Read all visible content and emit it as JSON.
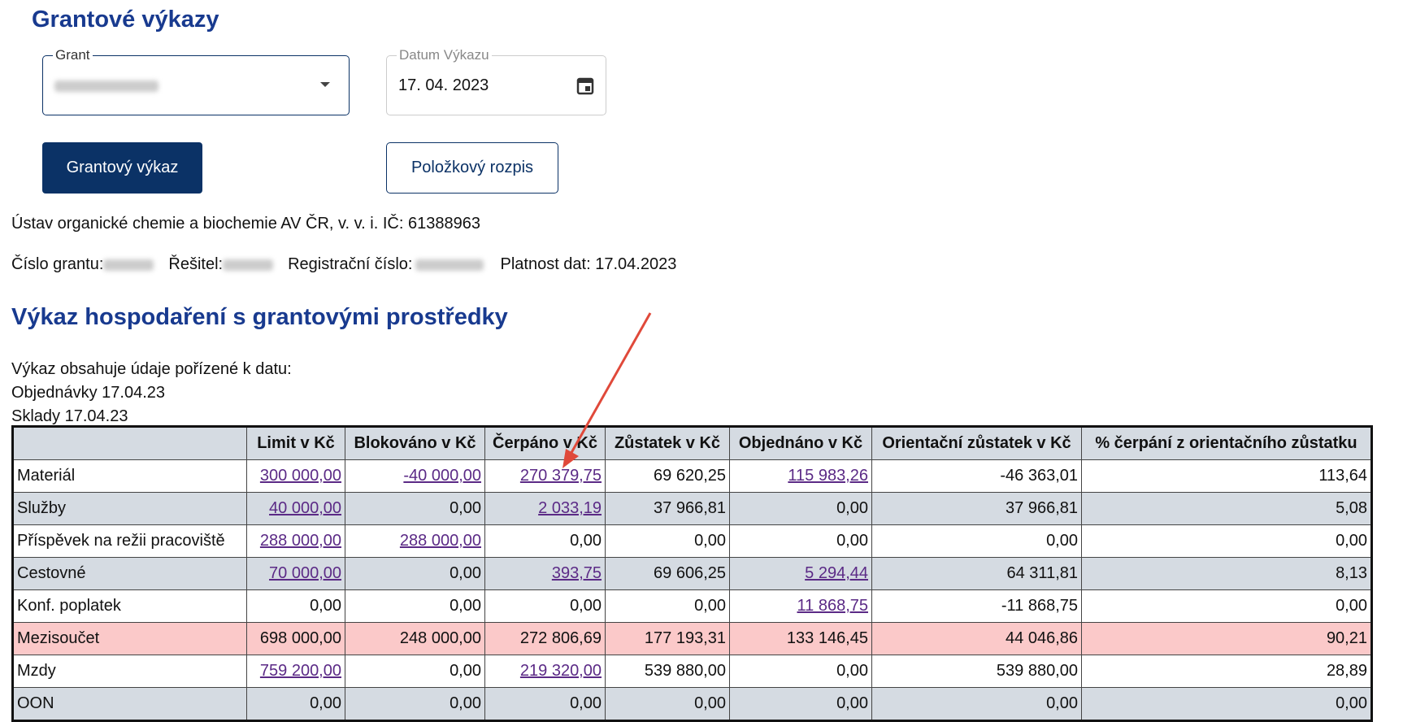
{
  "header": {
    "title": "Grantové výkazy"
  },
  "form": {
    "grant_label": "Grant",
    "date_label": "Datum Výkazu",
    "date_value": "17. 04. 2023",
    "button_primary": "Grantový výkaz",
    "button_secondary": "Položkový rozpis"
  },
  "info": {
    "institute": "Ústav organické chemie a biochemie AV ČR, v. v. i. IČ: 61388963",
    "grant_number_label": "Číslo grantu:",
    "investigator_label": "Řešitel:",
    "registration_label": "Registrační číslo:",
    "validity": "Platnost dat: 17.04.2023"
  },
  "section": {
    "title": "Výkaz hospodaření s grantovými prostředky",
    "notes": [
      "Výkaz obsahuje údaje pořízené k datu:",
      "Objednávky 17.04.23",
      "Sklady 17.04.23"
    ]
  },
  "table": {
    "headers": [
      "",
      "Limit v Kč",
      "Blokováno v Kč",
      "Čerpáno v Kč",
      "Zůstatek v Kč",
      "Objednáno v Kč",
      "Orientační zůstatek v Kč",
      "% čerpání z orientačního zůstatku"
    ],
    "rows": [
      {
        "cells": [
          "Materiál",
          "300 000,00",
          "-40 000,00",
          "270 379,75",
          "69 620,25",
          "115 983,26",
          "-46 363,01",
          "113,64"
        ],
        "links": [
          1,
          2,
          3,
          5
        ]
      },
      {
        "cells": [
          "Služby",
          "40 000,00",
          "0,00",
          "2 033,19",
          "37 966,81",
          "0,00",
          "37 966,81",
          "5,08"
        ],
        "links": [
          1,
          3
        ]
      },
      {
        "cells": [
          "Příspěvek na režii pracoviště",
          "288 000,00",
          "288 000,00",
          "0,00",
          "0,00",
          "0,00",
          "0,00",
          "0,00"
        ],
        "links": [
          1,
          2
        ]
      },
      {
        "cells": [
          "Cestovné",
          "70 000,00",
          "0,00",
          "393,75",
          "69 606,25",
          "5 294,44",
          "64 311,81",
          "8,13"
        ],
        "links": [
          1,
          3,
          5
        ]
      },
      {
        "cells": [
          "Konf. poplatek",
          "0,00",
          "0,00",
          "0,00",
          "0,00",
          "11 868,75",
          "-11 868,75",
          "0,00"
        ],
        "links": [
          5
        ]
      },
      {
        "cells": [
          "Mezisoučet",
          "698 000,00",
          "248 000,00",
          "272 806,69",
          "177 193,31",
          "133 146,45",
          "44 046,86",
          "90,21"
        ],
        "links": [],
        "highlight": true
      },
      {
        "cells": [
          "Mzdy",
          "759 200,00",
          "0,00",
          "219 320,00",
          "539 880,00",
          "0,00",
          "539 880,00",
          "28,89"
        ],
        "links": [
          1,
          3
        ]
      },
      {
        "cells": [
          "OON",
          "0,00",
          "0,00",
          "0,00",
          "0,00",
          "0,00",
          "0,00",
          "0,00"
        ],
        "links": []
      }
    ]
  }
}
